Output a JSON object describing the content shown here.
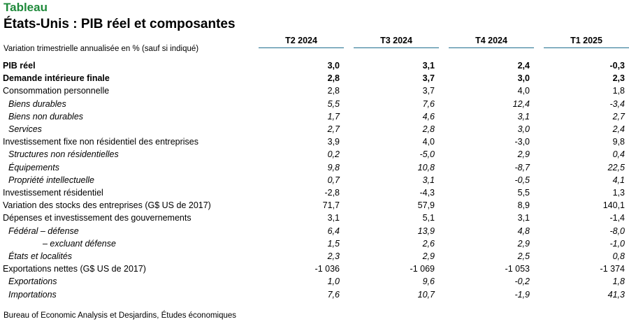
{
  "header": {
    "kicker": "Tableau",
    "title": "États-Unis : PIB réel et composantes",
    "subtitle": "Variation trimestrielle annualisée en % (sauf si indiqué)"
  },
  "columns": [
    "T2 2024",
    "T3 2024",
    "T4 2024",
    "T1 2025"
  ],
  "rows": [
    {
      "label": "PIB réel",
      "style": "bold",
      "values": [
        "3,0",
        "3,1",
        "2,4",
        "-0,3"
      ]
    },
    {
      "label": "Demande intérieure finale",
      "style": "bold",
      "values": [
        "2,8",
        "3,7",
        "3,0",
        "2,3"
      ]
    },
    {
      "label": "Consommation personnelle",
      "style": "normal",
      "values": [
        "2,8",
        "3,7",
        "4,0",
        "1,8"
      ]
    },
    {
      "label": "Biens durables",
      "style": "italic",
      "values": [
        "5,5",
        "7,6",
        "12,4",
        "-3,4"
      ]
    },
    {
      "label": "Biens non durables",
      "style": "italic",
      "values": [
        "1,7",
        "4,6",
        "3,1",
        "2,7"
      ]
    },
    {
      "label": "Services",
      "style": "italic",
      "values": [
        "2,7",
        "2,8",
        "3,0",
        "2,4"
      ]
    },
    {
      "label": "Investissement fixe non résidentiel des entreprises",
      "style": "normal",
      "values": [
        "3,9",
        "4,0",
        "-3,0",
        "9,8"
      ]
    },
    {
      "label": "Structures non résidentielles",
      "style": "italic",
      "values": [
        "0,2",
        "-5,0",
        "2,9",
        "0,4"
      ]
    },
    {
      "label": "Équipements",
      "style": "italic",
      "values": [
        "9,8",
        "10,8",
        "-8,7",
        "22,5"
      ]
    },
    {
      "label": "Propriété intellectuelle",
      "style": "italic",
      "values": [
        "0,7",
        "3,1",
        "-0,5",
        "4,1"
      ]
    },
    {
      "label": "Investissement résidentiel",
      "style": "normal",
      "values": [
        "-2,8",
        "-4,3",
        "5,5",
        "1,3"
      ]
    },
    {
      "label": "Variation des stocks des entreprises (G$ US de 2017)",
      "style": "normal",
      "values": [
        "71,7",
        "57,9",
        "8,9",
        "140,1"
      ]
    },
    {
      "label": "Dépenses et investissement des gouvernements",
      "style": "normal",
      "values": [
        "3,1",
        "5,1",
        "3,1",
        "-1,4"
      ]
    },
    {
      "label": "Fédéral – défense",
      "style": "italic",
      "values": [
        "6,4",
        "13,9",
        "4,8",
        "-8,0"
      ]
    },
    {
      "label": "– excluant défense",
      "style": "italic2",
      "values": [
        "1,5",
        "2,6",
        "2,9",
        "-1,0"
      ]
    },
    {
      "label": "États et localités",
      "style": "italic",
      "values": [
        "2,3",
        "2,9",
        "2,5",
        "0,8"
      ]
    },
    {
      "label": "Exportations nettes (G$ US de 2017)",
      "style": "normal",
      "values": [
        "-1 036",
        "-1 069",
        "-1 053",
        "-1 374"
      ]
    },
    {
      "label": "Exportations",
      "style": "italic",
      "values": [
        "1,0",
        "9,6",
        "-0,2",
        "1,8"
      ]
    },
    {
      "label": "Importations",
      "style": "italic",
      "values": [
        "7,6",
        "10,7",
        "-1,9",
        "41,3"
      ]
    }
  ],
  "source": "Bureau of Economic Analysis et Desjardins, Études économiques"
}
